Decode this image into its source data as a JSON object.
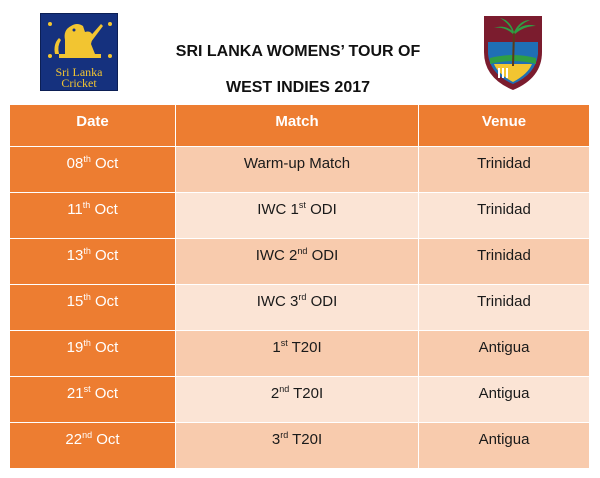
{
  "header": {
    "title_line1": "SRI LANKA WOMENS’ TOUR OF",
    "title_line2": "WEST INDIES 2017",
    "left_logo_text_1": "Sri Lanka",
    "left_logo_text_2": "Cricket"
  },
  "table": {
    "columns": [
      "Date",
      "Match",
      "Venue"
    ],
    "rows": [
      {
        "date_day": "08",
        "date_suffix": "th",
        "date_month": "Oct",
        "match_prefix": "Warm-up Match",
        "match_sup": "",
        "match_suffix": "",
        "venue": "Trinidad"
      },
      {
        "date_day": "11",
        "date_suffix": "th",
        "date_month": "Oct",
        "match_prefix": "IWC 1",
        "match_sup": "st",
        "match_suffix": "ODI",
        "venue": "Trinidad"
      },
      {
        "date_day": "13",
        "date_suffix": "th",
        "date_month": "Oct",
        "match_prefix": "IWC 2",
        "match_sup": "nd",
        "match_suffix": "ODI",
        "venue": "Trinidad"
      },
      {
        "date_day": "15",
        "date_suffix": "th",
        "date_month": "Oct",
        "match_prefix": "IWC 3",
        "match_sup": "rd",
        "match_suffix": "ODI",
        "venue": "Trinidad"
      },
      {
        "date_day": "19",
        "date_suffix": "th",
        "date_month": "Oct",
        "match_prefix": "1",
        "match_sup": "st",
        "match_suffix": "T20I",
        "venue": "Antigua"
      },
      {
        "date_day": "21",
        "date_suffix": "st",
        "date_month": "Oct",
        "match_prefix": "2",
        "match_sup": "nd",
        "match_suffix": "T20I",
        "venue": "Antigua"
      },
      {
        "date_day": "22",
        "date_suffix": "nd",
        "date_month": "Oct",
        "match_prefix": "3",
        "match_sup": "rd",
        "match_suffix": "T20I",
        "venue": "Antigua"
      }
    ]
  },
  "colors": {
    "header_orange": "#ed7d31",
    "row_dark": "#f8cbad",
    "row_light": "#fbe4d5",
    "sl_logo_blue": "#15317e",
    "wi_logo_maroon": "#7b1c2e"
  }
}
